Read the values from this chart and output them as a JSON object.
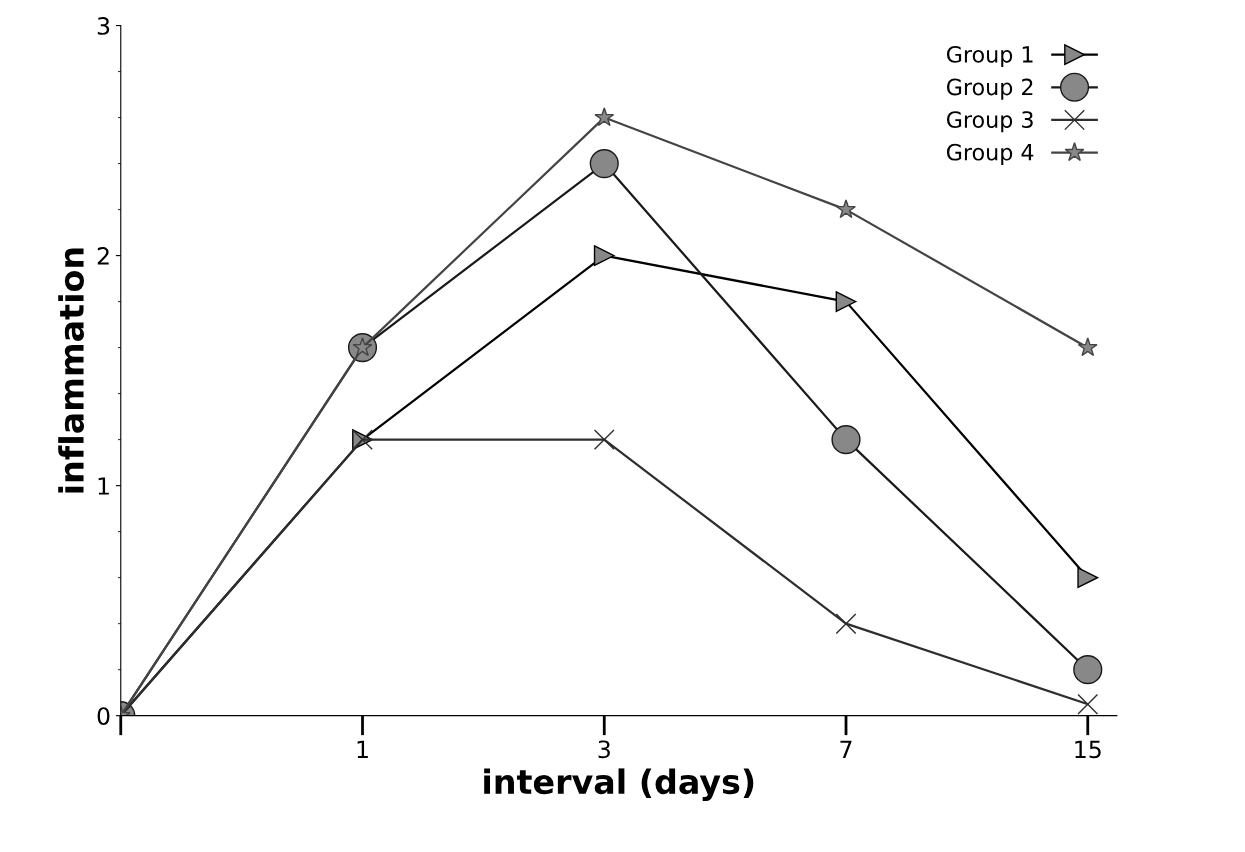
{
  "chart_data": {
    "type": "line",
    "xlabel": "interval (days)",
    "ylabel": "inflammation",
    "categories": [
      null,
      "1",
      "3",
      "7",
      "15"
    ],
    "series": [
      {
        "name": "Group 1",
        "color": "#000000",
        "marker": "triangle",
        "values": [
          0,
          1.2,
          2.0,
          1.8,
          0.6
        ]
      },
      {
        "name": "Group 2",
        "color": "#1a1a1a",
        "marker": "circle",
        "values": [
          0,
          1.6,
          2.4,
          1.2,
          0.2
        ]
      },
      {
        "name": "Group 3",
        "color": "#2e2e2e",
        "marker": "cross",
        "values": [
          0,
          1.2,
          1.2,
          0.4,
          0.05
        ]
      },
      {
        "name": "Group 4",
        "color": "#444444",
        "marker": "star",
        "values": [
          0,
          1.6,
          2.6,
          2.2,
          1.6
        ]
      }
    ],
    "ylim": [
      0,
      3
    ],
    "yticks": [
      0,
      1,
      2,
      3
    ],
    "grid": false,
    "legend": "top right",
    "line_style": "solid"
  }
}
